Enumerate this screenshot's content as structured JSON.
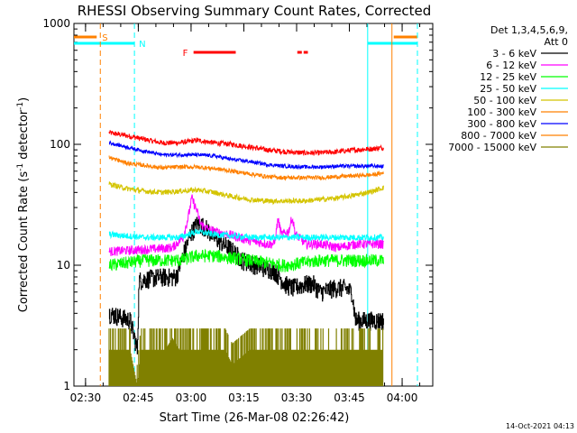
{
  "chart_data": {
    "type": "line",
    "title": "RHESSI Observing Summary Count Rates, Corrected",
    "xlabel": "Start Time (26-Mar-08 02:26:42)",
    "ylabel": "Corrected Count Rate (s",
    "ylabel_sup": "-1",
    "ylabel_tail": " detector",
    "ylabel_close": ")",
    "ylog": true,
    "ylim": [
      1,
      1000
    ],
    "xlim_minutes": [
      0,
      102
    ],
    "x_ticks": [
      {
        "m": 3.3,
        "label": "02:30"
      },
      {
        "m": 18.3,
        "label": "02:45"
      },
      {
        "m": 33.3,
        "label": "03:00"
      },
      {
        "m": 48.3,
        "label": "03:15"
      },
      {
        "m": 63.3,
        "label": "03:30"
      },
      {
        "m": 78.3,
        "label": "03:45"
      },
      {
        "m": 93.3,
        "label": "04:00"
      }
    ],
    "y_major_ticks": [
      {
        "v": 1,
        "label": "1"
      },
      {
        "v": 10,
        "label": "10"
      },
      {
        "v": 100,
        "label": "100"
      },
      {
        "v": 1000,
        "label": "1000"
      }
    ],
    "legend_header": [
      "Det 1,3,4,5,6,9,",
      "Att 0"
    ],
    "legend_placement": "right",
    "footer_date": "14-Oct-2021 04:13",
    "flags": {
      "S_label": "S",
      "N_label": "N",
      "F_label": "F",
      "S_color": "#ff8000",
      "N_color": "#00ffff",
      "F_color": "#ff0000",
      "S_start": 7.5,
      "S_end": 90.4,
      "N_start": 17.2,
      "N_end": 83.5,
      "F_segments": [
        [
          34,
          46
        ],
        [
          63.5,
          66.5
        ]
      ]
    },
    "data_range_minutes": [
      10,
      88
    ],
    "series": [
      {
        "name": "3 - 6 keV",
        "color": "#000000",
        "points": [
          [
            10,
            4
          ],
          [
            16,
            3.5
          ],
          [
            18,
            2
          ],
          [
            18.5,
            7.5
          ],
          [
            24,
            8
          ],
          [
            29,
            8
          ],
          [
            31,
            12
          ],
          [
            33,
            18
          ],
          [
            35,
            22
          ],
          [
            37,
            21
          ],
          [
            40,
            17
          ],
          [
            44,
            14
          ],
          [
            48,
            11
          ],
          [
            52,
            10
          ],
          [
            57,
            9
          ],
          [
            60,
            7
          ],
          [
            62,
            6.5
          ],
          [
            66,
            7
          ],
          [
            68,
            7
          ],
          [
            70,
            6
          ],
          [
            74,
            6.5
          ],
          [
            77,
            6.5
          ],
          [
            79,
            6
          ],
          [
            80,
            3.5
          ],
          [
            88,
            3.5
          ]
        ]
      },
      {
        "name": "6 - 12 keV",
        "color": "#ff00ff",
        "points": [
          [
            10,
            13
          ],
          [
            20,
            13.5
          ],
          [
            28,
            14
          ],
          [
            31,
            17
          ],
          [
            32.5,
            25
          ],
          [
            33.5,
            36
          ],
          [
            35,
            28
          ],
          [
            36,
            22
          ],
          [
            38,
            20
          ],
          [
            40,
            19
          ],
          [
            44,
            18
          ],
          [
            50,
            16
          ],
          [
            55,
            15
          ],
          [
            57,
            15
          ],
          [
            58,
            24
          ],
          [
            59,
            18
          ],
          [
            61,
            19
          ],
          [
            62,
            25
          ],
          [
            63,
            18
          ],
          [
            66,
            15
          ],
          [
            70,
            15
          ],
          [
            75,
            14
          ],
          [
            80,
            15
          ],
          [
            88,
            15
          ]
        ]
      },
      {
        "name": "12 - 25 keV",
        "color": "#00ff00",
        "points": [
          [
            10,
            10
          ],
          [
            20,
            11
          ],
          [
            30,
            11
          ],
          [
            35,
            12
          ],
          [
            40,
            12
          ],
          [
            50,
            11
          ],
          [
            60,
            10
          ],
          [
            70,
            11
          ],
          [
            80,
            11
          ],
          [
            88,
            11
          ]
        ]
      },
      {
        "name": "25 - 50 keV",
        "color": "#00ffff",
        "points": [
          [
            10,
            18
          ],
          [
            20,
            17
          ],
          [
            30,
            17
          ],
          [
            35,
            19
          ],
          [
            40,
            18
          ],
          [
            50,
            17
          ],
          [
            60,
            17
          ],
          [
            70,
            17
          ],
          [
            80,
            17
          ],
          [
            88,
            17
          ]
        ]
      },
      {
        "name": "50 - 100 keV",
        "color": "#d4c400",
        "points": [
          [
            10,
            47
          ],
          [
            15,
            43
          ],
          [
            20,
            41
          ],
          [
            25,
            40
          ],
          [
            30,
            41
          ],
          [
            35,
            42
          ],
          [
            40,
            40
          ],
          [
            45,
            37
          ],
          [
            50,
            35
          ],
          [
            55,
            34
          ],
          [
            60,
            34
          ],
          [
            65,
            34
          ],
          [
            70,
            35
          ],
          [
            75,
            36
          ],
          [
            80,
            38
          ],
          [
            85,
            41
          ],
          [
            88,
            44
          ]
        ]
      },
      {
        "name": "100 - 300 keV",
        "color": "#ff8000",
        "points": [
          [
            10,
            78
          ],
          [
            15,
            70
          ],
          [
            20,
            67
          ],
          [
            25,
            64
          ],
          [
            30,
            65
          ],
          [
            35,
            65
          ],
          [
            40,
            63
          ],
          [
            45,
            60
          ],
          [
            50,
            57
          ],
          [
            55,
            54
          ],
          [
            60,
            53
          ],
          [
            65,
            53
          ],
          [
            70,
            53
          ],
          [
            75,
            54
          ],
          [
            80,
            55
          ],
          [
            85,
            56
          ],
          [
            88,
            58
          ]
        ]
      },
      {
        "name": "300 - 800 keV",
        "color": "#0000ff",
        "points": [
          [
            10,
            103
          ],
          [
            15,
            95
          ],
          [
            20,
            88
          ],
          [
            25,
            82
          ],
          [
            30,
            82
          ],
          [
            35,
            82
          ],
          [
            40,
            80
          ],
          [
            45,
            75
          ],
          [
            50,
            72
          ],
          [
            55,
            68
          ],
          [
            60,
            66
          ],
          [
            65,
            65
          ],
          [
            70,
            65
          ],
          [
            75,
            66
          ],
          [
            80,
            66
          ],
          [
            85,
            66
          ],
          [
            88,
            66
          ]
        ]
      },
      {
        "name": "800 - 7000 keV",
        "color": "#ff8000",
        "hidden_in_plot": true,
        "points": []
      },
      {
        "name": "7000 - 15000 keV",
        "color": "#808000",
        "points": [
          [
            10,
            2
          ],
          [
            16,
            2
          ],
          [
            18,
            1
          ],
          [
            19,
            2
          ],
          [
            24,
            2
          ],
          [
            26,
            2
          ],
          [
            28,
            2.5
          ],
          [
            30,
            2
          ],
          [
            35,
            2
          ],
          [
            40,
            2
          ],
          [
            43,
            2
          ],
          [
            45,
            1.5
          ],
          [
            50,
            2
          ],
          [
            55,
            2
          ],
          [
            60,
            2
          ],
          [
            65,
            2
          ],
          [
            70,
            2
          ],
          [
            75,
            2
          ],
          [
            80,
            2
          ],
          [
            85,
            2
          ],
          [
            88,
            2
          ]
        ]
      }
    ],
    "red_series_name": "",
    "red_series_color": "#ff0000",
    "red_points": [
      [
        10,
        125
      ],
      [
        15,
        118
      ],
      [
        20,
        110
      ],
      [
        25,
        103
      ],
      [
        30,
        103
      ],
      [
        35,
        108
      ],
      [
        40,
        103
      ],
      [
        45,
        100
      ],
      [
        50,
        95
      ],
      [
        55,
        90
      ],
      [
        60,
        87
      ],
      [
        65,
        85
      ],
      [
        70,
        85
      ],
      [
        75,
        87
      ],
      [
        80,
        90
      ],
      [
        85,
        92
      ],
      [
        88,
        94
      ]
    ]
  }
}
